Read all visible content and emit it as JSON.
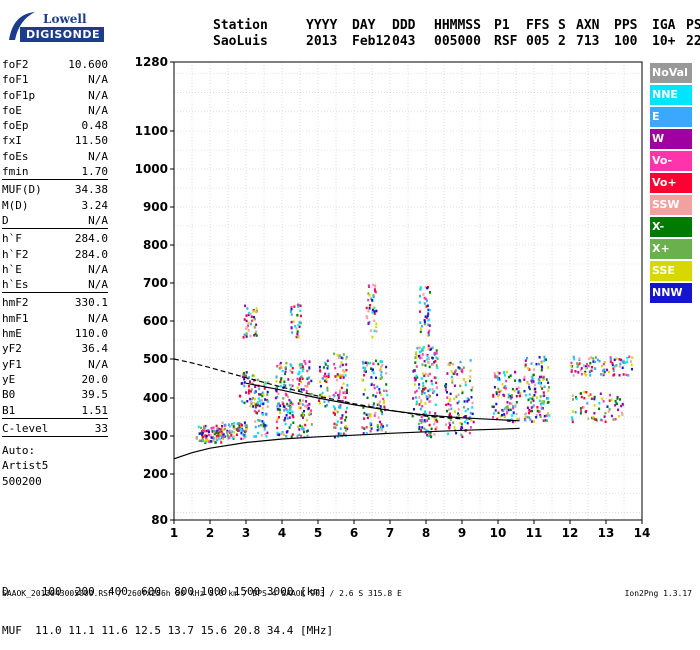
{
  "logo": {
    "line1": "Lowell",
    "line2": "DIGISONDE"
  },
  "header": {
    "labels": [
      "Station",
      "YYYY",
      "DAY",
      "DDD",
      "HHMMSS",
      "P1",
      "FFS",
      "S",
      "AXN",
      "PPS",
      "IGA",
      "PS"
    ],
    "values": [
      "SaoLuis",
      "2013",
      "Feb12",
      "043",
      "005000",
      "RSF",
      "005",
      "2",
      "713",
      "100",
      "10+",
      "22"
    ]
  },
  "params": [
    {
      "name": "foF2",
      "value": "10.600"
    },
    {
      "name": "foF1",
      "value": "N/A"
    },
    {
      "name": "foF1p",
      "value": "N/A"
    },
    {
      "name": "foE",
      "value": "N/A"
    },
    {
      "name": "foEp",
      "value": "0.48"
    },
    {
      "name": "fxI",
      "value": "11.50"
    },
    {
      "name": "foEs",
      "value": "N/A"
    },
    {
      "name": "fmin",
      "value": "1.70"
    },
    {
      "name": "MUF(D)",
      "value": "34.38"
    },
    {
      "name": "M(D)",
      "value": "3.24"
    },
    {
      "name": "D",
      "value": "N/A"
    },
    {
      "name": "h`F",
      "value": "284.0"
    },
    {
      "name": "h`F2",
      "value": "284.0"
    },
    {
      "name": "h`E",
      "value": "N/A"
    },
    {
      "name": "h`Es",
      "value": "N/A"
    },
    {
      "name": "hmF2",
      "value": "330.1"
    },
    {
      "name": "hmF1",
      "value": "N/A"
    },
    {
      "name": "hmE",
      "value": "110.0"
    },
    {
      "name": "yF2",
      "value": "36.4"
    },
    {
      "name": "yF1",
      "value": "N/A"
    },
    {
      "name": "yE",
      "value": "20.0"
    },
    {
      "name": "B0",
      "value": "39.5"
    },
    {
      "name": "B1",
      "value": "1.51"
    },
    {
      "name": "C-level",
      "value": "33"
    }
  ],
  "auto": {
    "l1": "Auto:",
    "l2": "Artist5",
    "l3": "500200"
  },
  "footer": {
    "d_line": "D     100  200  400  600  800 1000 1500 3000 [km]",
    "muf_line": "MUF  11.0 11.1 11.6 12.5 13.7 15.6 20.8 34.4 [MHz]"
  },
  "footnote": {
    "left": "SAAOK_2013043005000.RSF / 260fx256h 50 kHz 5.0 km / DPS-4 SAAOK 903 / 2.6 S 315.8 E",
    "right": "Ion2Png 1.3.17"
  },
  "legend": [
    {
      "label": "NoVal",
      "color": "#999999"
    },
    {
      "label": "NNE",
      "color": "#00e5ff"
    },
    {
      "label": "E",
      "color": "#3aa8ff"
    },
    {
      "label": "W",
      "color": "#a000a0"
    },
    {
      "label": "Vo-",
      "color": "#ff33aa"
    },
    {
      "label": "Vo+",
      "color": "#ff0033"
    },
    {
      "label": "SSW",
      "color": "#f2a0a0"
    },
    {
      "label": "X-",
      "color": "#007a00"
    },
    {
      "label": "X+",
      "color": "#6ab04c"
    },
    {
      "label": "SSE",
      "color": "#d8d800"
    },
    {
      "label": "NNW",
      "color": "#1515d0"
    }
  ],
  "chart_data": {
    "type": "scatter",
    "xlim": [
      1,
      14
    ],
    "ylim": [
      80,
      1280
    ],
    "x_ticks": [
      1,
      2,
      3,
      4,
      5,
      6,
      7,
      8,
      9,
      10,
      11,
      12,
      13,
      14
    ],
    "y_ticks": [
      80,
      200,
      300,
      400,
      500,
      600,
      700,
      800,
      900,
      1000,
      1100,
      1280
    ],
    "y_scale": "height-compressed",
    "grid": true,
    "clusters": [
      {
        "x": [
          1.6,
          2.3
        ],
        "y": [
          285,
          330
        ],
        "n": 90
      },
      {
        "x": [
          2.3,
          3.0
        ],
        "y": [
          295,
          340
        ],
        "n": 80
      },
      {
        "x": [
          2.8,
          3.2
        ],
        "y": [
          380,
          470
        ],
        "n": 40
      },
      {
        "x": [
          2.9,
          3.3
        ],
        "y": [
          560,
          650
        ],
        "n": 35
      },
      {
        "x": [
          3.2,
          3.6
        ],
        "y": [
          300,
          450
        ],
        "n": 70
      },
      {
        "x": [
          3.8,
          4.3
        ],
        "y": [
          300,
          500
        ],
        "n": 110
      },
      {
        "x": [
          4.4,
          4.8
        ],
        "y": [
          300,
          500
        ],
        "n": 90
      },
      {
        "x": [
          4.2,
          4.5
        ],
        "y": [
          560,
          650
        ],
        "n": 30
      },
      {
        "x": [
          5.4,
          5.8
        ],
        "y": [
          300,
          520
        ],
        "n": 90
      },
      {
        "x": [
          5.0,
          5.3
        ],
        "y": [
          380,
          500
        ],
        "n": 40
      },
      {
        "x": [
          6.2,
          6.9
        ],
        "y": [
          310,
          500
        ],
        "n": 110
      },
      {
        "x": [
          6.3,
          6.6
        ],
        "y": [
          560,
          700
        ],
        "n": 40
      },
      {
        "x": [
          7.6,
          8.3
        ],
        "y": [
          300,
          540
        ],
        "n": 160
      },
      {
        "x": [
          7.8,
          8.1
        ],
        "y": [
          560,
          700
        ],
        "n": 40
      },
      {
        "x": [
          8.5,
          9.3
        ],
        "y": [
          300,
          500
        ],
        "n": 110
      },
      {
        "x": [
          9.8,
          10.6
        ],
        "y": [
          340,
          470
        ],
        "n": 100
      },
      {
        "x": [
          10.7,
          11.4
        ],
        "y": [
          340,
          510
        ],
        "n": 120
      },
      {
        "x": [
          12.0,
          13.7
        ],
        "y": [
          460,
          510
        ],
        "n": 90
      },
      {
        "x": [
          12.0,
          13.5
        ],
        "y": [
          340,
          420
        ],
        "n": 70
      }
    ],
    "curves": [
      {
        "name": "solid-lower",
        "style": "solid",
        "x": [
          1.0,
          1.5,
          2.0,
          3.0,
          4.0,
          5.0,
          6.0,
          7.0,
          8.0,
          9.0,
          10.0,
          10.6
        ],
        "y": [
          240,
          256,
          268,
          283,
          292,
          298,
          302,
          307,
          311,
          315,
          318,
          320
        ]
      },
      {
        "name": "dashed-upper",
        "style": "dashed",
        "x": [
          1.0,
          1.5,
          2.0,
          2.5,
          3.0,
          3.5,
          4.0,
          5.0,
          6.0,
          7.0,
          8.0,
          9.0
        ],
        "y": [
          500,
          490,
          478,
          465,
          452,
          440,
          428,
          405,
          385,
          368,
          352,
          345
        ]
      },
      {
        "name": "solid-upper",
        "style": "solid",
        "x": [
          3.0,
          4.0,
          5.0,
          6.0,
          7.0,
          8.0,
          9.0,
          10.0,
          10.6
        ],
        "y": [
          438,
          420,
          400,
          382,
          367,
          355,
          348,
          343,
          340
        ]
      }
    ]
  }
}
